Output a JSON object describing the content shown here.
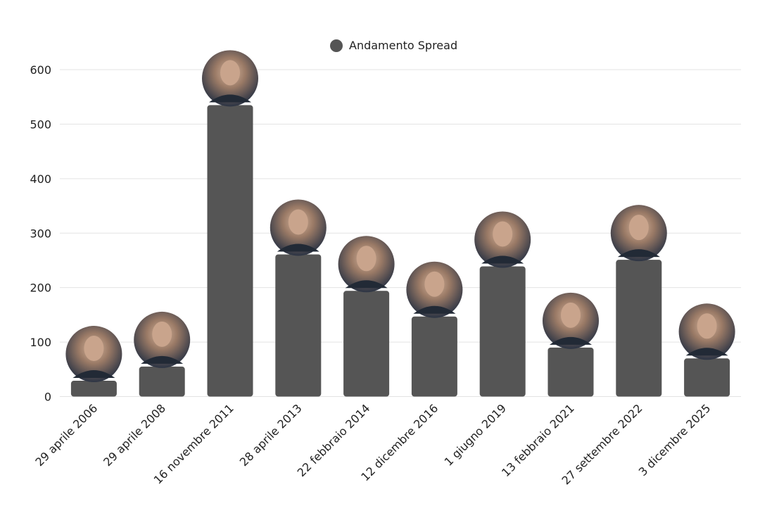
{
  "chart_data": {
    "type": "bar",
    "title": "",
    "xlabel": "",
    "ylabel": "",
    "legend": {
      "entries": [
        "Andamento Spread"
      ],
      "placement": "top-center"
    },
    "grid": true,
    "ylim": [
      0,
      600
    ],
    "yticks": [
      0,
      100,
      200,
      300,
      400,
      500,
      600
    ],
    "categories": [
      "29 aprile 2006",
      "29 aprile 2008",
      "16 novembre 2011",
      "28 aprile 2013",
      "22 febbraio 2014",
      "12 dicembre 2016",
      "1 giugno 2019",
      "13 febbraio 2021",
      "27 settembre 2022",
      "3 dicembre 2025"
    ],
    "series": [
      {
        "name": "Andamento Spread",
        "values": [
          29,
          55,
          535,
          261,
          194,
          147,
          239,
          90,
          251,
          70
        ]
      }
    ],
    "bar_color": "#555555",
    "markers": "circular portrait photo above each bar"
  }
}
